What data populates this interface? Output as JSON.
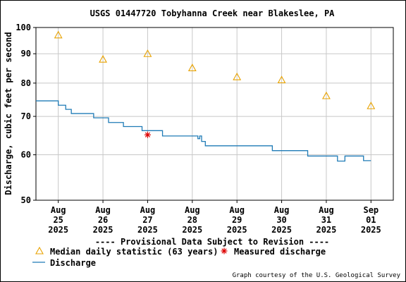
{
  "chart_data": {
    "type": "line",
    "title": "USGS 01447720 Tobyhanna Creek near Blakeslee, PA",
    "ylabel": "Discharge, cubic feet per second",
    "y_scale": "log",
    "ylim": [
      50,
      100
    ],
    "y_ticks": [
      "100",
      "90",
      "80",
      "70",
      "60",
      "50"
    ],
    "x_ticks": [
      {
        "month": "Aug",
        "day": "25",
        "year": "2025"
      },
      {
        "month": "Aug",
        "day": "26",
        "year": "2025"
      },
      {
        "month": "Aug",
        "day": "27",
        "year": "2025"
      },
      {
        "month": "Aug",
        "day": "28",
        "year": "2025"
      },
      {
        "month": "Aug",
        "day": "29",
        "year": "2025"
      },
      {
        "month": "Aug",
        "day": "30",
        "year": "2025"
      },
      {
        "month": "Aug",
        "day": "31",
        "year": "2025"
      },
      {
        "month": "Sep",
        "day": "01",
        "year": "2025"
      }
    ],
    "xlim": [
      "2025-08-24T12:00",
      "2025-09-01T12:00"
    ],
    "grid": true,
    "series": [
      {
        "name": "Discharge",
        "color": "#1f7bb6",
        "style": "step",
        "points": [
          [
            "2025-08-24T12:00",
            74.5
          ],
          [
            "2025-08-25T00:00",
            74.5
          ],
          [
            "2025-08-25T00:00",
            73.2
          ],
          [
            "2025-08-25T04:00",
            73.2
          ],
          [
            "2025-08-25T04:00",
            72.0
          ],
          [
            "2025-08-25T07:00",
            72.0
          ],
          [
            "2025-08-25T07:00",
            70.8
          ],
          [
            "2025-08-25T19:00",
            70.8
          ],
          [
            "2025-08-25T19:00",
            69.6
          ],
          [
            "2025-08-26T03:00",
            69.6
          ],
          [
            "2025-08-26T03:00",
            68.3
          ],
          [
            "2025-08-26T11:00",
            68.3
          ],
          [
            "2025-08-26T11:00",
            67.2
          ],
          [
            "2025-08-26T21:00",
            67.2
          ],
          [
            "2025-08-26T21:00",
            66.1
          ],
          [
            "2025-08-27T08:00",
            66.1
          ],
          [
            "2025-08-27T08:00",
            64.7
          ],
          [
            "2025-08-28T03:00",
            64.7
          ],
          [
            "2025-08-28T03:00",
            64.0
          ],
          [
            "2025-08-28T04:00",
            64.0
          ],
          [
            "2025-08-28T04:00",
            64.7
          ],
          [
            "2025-08-28T05:00",
            64.7
          ],
          [
            "2025-08-28T05:00",
            63.3
          ],
          [
            "2025-08-28T07:00",
            63.3
          ],
          [
            "2025-08-28T07:00",
            62.2
          ],
          [
            "2025-08-29T19:00",
            62.2
          ],
          [
            "2025-08-29T19:00",
            61.0
          ],
          [
            "2025-08-30T14:00",
            61.0
          ],
          [
            "2025-08-30T14:00",
            59.7
          ],
          [
            "2025-08-31T06:00",
            59.7
          ],
          [
            "2025-08-31T06:00",
            58.5
          ],
          [
            "2025-08-31T10:00",
            58.5
          ],
          [
            "2025-08-31T10:00",
            59.7
          ],
          [
            "2025-08-31T20:00",
            59.7
          ],
          [
            "2025-08-31T20:00",
            58.6
          ],
          [
            "2025-09-01T00:00",
            58.6
          ]
        ]
      }
    ],
    "median_daily": {
      "name": "Median daily statistic (63 years)",
      "color": "#e8a200",
      "marker": "triangle",
      "points": [
        [
          "2025-08-25T00:00",
          97
        ],
        [
          "2025-08-26T00:00",
          88
        ],
        [
          "2025-08-27T00:00",
          90
        ],
        [
          "2025-08-28T00:00",
          85
        ],
        [
          "2025-08-29T00:00",
          82
        ],
        [
          "2025-08-30T00:00",
          81
        ],
        [
          "2025-08-31T00:00",
          76
        ],
        [
          "2025-09-01T00:00",
          73
        ]
      ]
    },
    "measured": {
      "name": "Measured discharge",
      "color": "#dd0000",
      "marker": "asterisk",
      "points": [
        [
          "2025-08-27T00:00",
          65
        ]
      ]
    },
    "provisional_note": "---- Provisional Data Subject to Revision ----",
    "provisional_color": "#dd0000",
    "credit": "Graph courtesy of the U.S. Geological Survey",
    "legend_placement": "bottom-left"
  }
}
